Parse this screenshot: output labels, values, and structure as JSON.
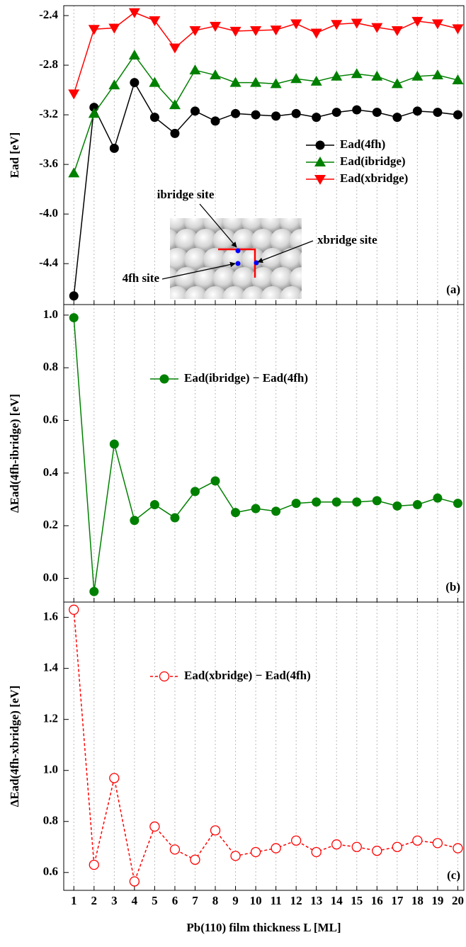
{
  "chart_data": [
    {
      "type": "line",
      "panel_label": "(a)",
      "ylabel": "Ead [eV]",
      "x": [
        1,
        2,
        3,
        4,
        5,
        6,
        7,
        8,
        9,
        10,
        11,
        12,
        13,
        14,
        15,
        16,
        17,
        18,
        19,
        20
      ],
      "xlim": [
        0.5,
        20.3
      ],
      "xticks": [
        1,
        2,
        3,
        4,
        5,
        6,
        7,
        8,
        9,
        10,
        11,
        12,
        13,
        14,
        15,
        16,
        17,
        18,
        19,
        20
      ],
      "ylim": [
        -4.73,
        -2.32
      ],
      "yticks": [
        -2.4,
        -2.8,
        -3.2,
        -3.6,
        {
          "value": -4,
          "label": "-4.0"
        },
        -4.4
      ],
      "grid": true,
      "legend": "center right",
      "series": [
        {
          "name": "Ead(4fh)",
          "color": "#000000",
          "marker": "circle",
          "dashed": false,
          "values": [
            -4.66,
            -3.14,
            -3.47,
            -2.94,
            -3.22,
            -3.35,
            -3.17,
            -3.25,
            -3.19,
            -3.2,
            -3.21,
            -3.19,
            -3.22,
            -3.18,
            -3.16,
            -3.18,
            -3.22,
            -3.17,
            -3.18,
            -3.2
          ]
        },
        {
          "name": "Ead(ibridge)",
          "color": "#008000",
          "marker": "triangle-up",
          "dashed": false,
          "values": [
            -3.67,
            -3.19,
            -2.96,
            -2.72,
            -2.94,
            -3.12,
            -2.84,
            -2.88,
            -2.94,
            -2.94,
            -2.95,
            -2.91,
            -2.93,
            -2.89,
            -2.87,
            -2.89,
            -2.95,
            -2.89,
            -2.88,
            -2.92
          ]
        },
        {
          "name": "Ead(xbridge)",
          "color": "#ff0000",
          "marker": "triangle-down",
          "dashed": false,
          "values": [
            -3.03,
            -2.51,
            -2.5,
            -2.375,
            -2.44,
            -2.66,
            -2.52,
            -2.485,
            -2.525,
            -2.52,
            -2.515,
            -2.465,
            -2.54,
            -2.47,
            -2.46,
            -2.495,
            -2.52,
            -2.445,
            -2.465,
            -2.505
          ]
        }
      ],
      "annotations": [
        "ibridge site",
        "xbridge site",
        "4fh site"
      ]
    },
    {
      "type": "line",
      "panel_label": "(b)",
      "ylabel": "ΔEad(4fh-ibridge) [eV]",
      "x": [
        1,
        2,
        3,
        4,
        5,
        6,
        7,
        8,
        9,
        10,
        11,
        12,
        13,
        14,
        15,
        16,
        17,
        18,
        19,
        20
      ],
      "xlim": [
        0.5,
        20.3
      ],
      "xticks": [
        1,
        2,
        3,
        4,
        5,
        6,
        7,
        8,
        9,
        10,
        11,
        12,
        13,
        14,
        15,
        16,
        17,
        18,
        19,
        20
      ],
      "ylim": [
        -0.09,
        1.04
      ],
      "yticks": [
        {
          "value": 0,
          "label": "0.0"
        },
        0.2,
        0.4,
        0.6,
        0.8,
        {
          "value": 1,
          "label": "1.0"
        }
      ],
      "grid": true,
      "legend": "upper center",
      "series": [
        {
          "name": "Ead(ibridge) − Ead(4fh)",
          "color": "#008000",
          "marker": "circle",
          "dashed": false,
          "values": [
            0.99,
            -0.05,
            0.51,
            0.22,
            0.28,
            0.23,
            0.33,
            0.37,
            0.25,
            0.265,
            0.255,
            0.285,
            0.29,
            0.29,
            0.29,
            0.295,
            0.275,
            0.28,
            0.305,
            0.285
          ]
        }
      ]
    },
    {
      "type": "line",
      "panel_label": "(c)",
      "ylabel": "ΔEad(4fh-xbridge) [eV]",
      "xlabel": "Pb(110) film thickness L [ML]",
      "x": [
        1,
        2,
        3,
        4,
        5,
        6,
        7,
        8,
        9,
        10,
        11,
        12,
        13,
        14,
        15,
        16,
        17,
        18,
        19,
        20
      ],
      "xlim": [
        0.5,
        20.3
      ],
      "xticks": [
        1,
        2,
        3,
        4,
        5,
        6,
        7,
        8,
        9,
        10,
        11,
        12,
        13,
        14,
        15,
        16,
        17,
        18,
        19,
        20
      ],
      "ylim": [
        0.53,
        1.66
      ],
      "yticks": [
        0.6,
        0.8,
        {
          "value": 1,
          "label": "1.0"
        },
        1.2,
        1.4,
        1.6
      ],
      "grid": true,
      "legend": "upper center",
      "series": [
        {
          "name": "Ead(xbridge) − Ead(4fh)",
          "color": "#ff0000",
          "marker": "open-circle",
          "dashed": true,
          "values": [
            1.63,
            0.63,
            0.97,
            0.565,
            0.78,
            0.69,
            0.65,
            0.765,
            0.665,
            0.68,
            0.695,
            0.725,
            0.68,
            0.71,
            0.7,
            0.685,
            0.7,
            0.725,
            0.715,
            0.695
          ]
        }
      ]
    }
  ]
}
